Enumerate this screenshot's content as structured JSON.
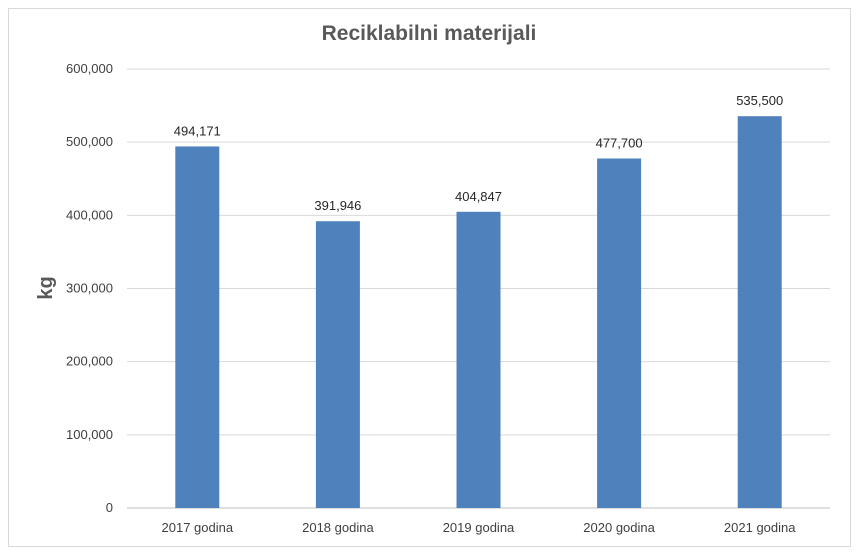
{
  "chart_data": {
    "type": "bar",
    "title": "Reciklabilni materijali",
    "xlabel": "",
    "ylabel": "kg",
    "categories": [
      "2017 godina",
      "2018 godina",
      "2019 godina",
      "2020 godina",
      "2021 godina"
    ],
    "values": [
      494171,
      391946,
      404847,
      477700,
      535500
    ],
    "value_labels": [
      "494,171",
      "391,946",
      "404,847",
      "477,700",
      "535,500"
    ],
    "ylim": [
      0,
      600000
    ],
    "yticks": [
      0,
      100000,
      200000,
      300000,
      400000,
      500000,
      600000
    ],
    "ytick_labels": [
      "0",
      "100,000",
      "200,000",
      "300,000",
      "400,000",
      "500,000",
      "600,000"
    ],
    "grid": true,
    "legend": "none",
    "bar_color": "#4f81bd"
  }
}
